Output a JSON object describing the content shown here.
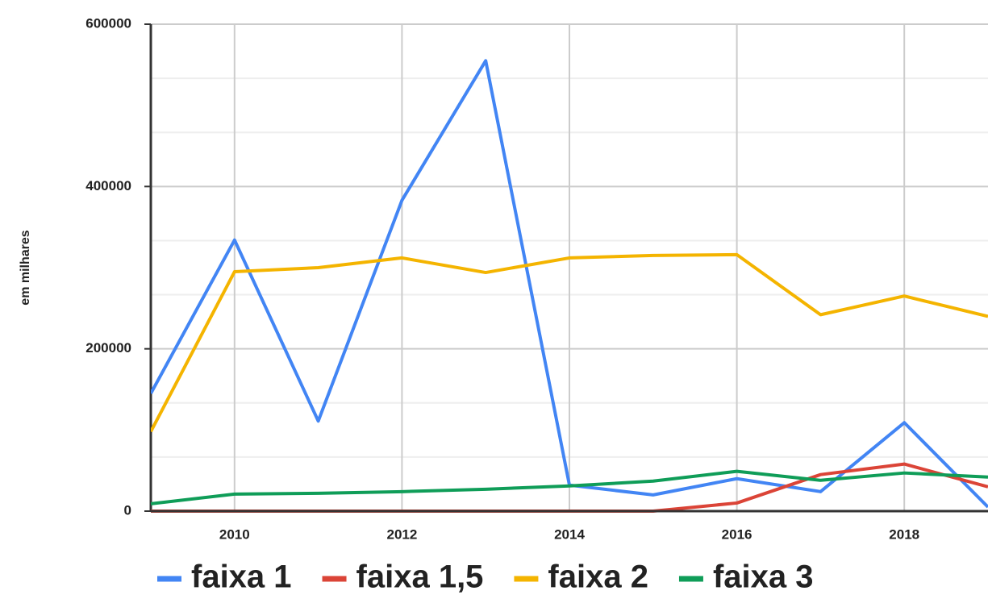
{
  "chart_data": {
    "type": "line",
    "ylabel": "em milhares",
    "x": [
      2009,
      2010,
      2011,
      2012,
      2013,
      2014,
      2015,
      2016,
      2017,
      2018,
      2019
    ],
    "series": [
      {
        "name": "faixa 1",
        "color": "#4285f4",
        "values": [
          145000,
          334000,
          111000,
          383000,
          555000,
          32000,
          20000,
          40000,
          24000,
          109000,
          5000
        ]
      },
      {
        "name": "faixa 1,5",
        "color": "#db4437",
        "values": [
          0,
          0,
          0,
          0,
          0,
          0,
          0,
          10000,
          45000,
          58000,
          30000
        ]
      },
      {
        "name": "faixa 2",
        "color": "#f4b400",
        "values": [
          98000,
          295000,
          300000,
          312000,
          294000,
          312000,
          315000,
          316000,
          242000,
          265000,
          240000
        ]
      },
      {
        "name": "faixa 3",
        "color": "#0f9d58",
        "values": [
          9000,
          21000,
          22000,
          24000,
          27000,
          31000,
          37000,
          49000,
          38000,
          47000,
          42000
        ]
      }
    ],
    "xlim": [
      2009,
      2019
    ],
    "xticks": [
      2010,
      2012,
      2014,
      2016,
      2018
    ],
    "ylim": [
      0,
      600000
    ],
    "yticks": [
      0,
      200000,
      400000,
      600000
    ],
    "grid": true,
    "legend": "bottom"
  }
}
